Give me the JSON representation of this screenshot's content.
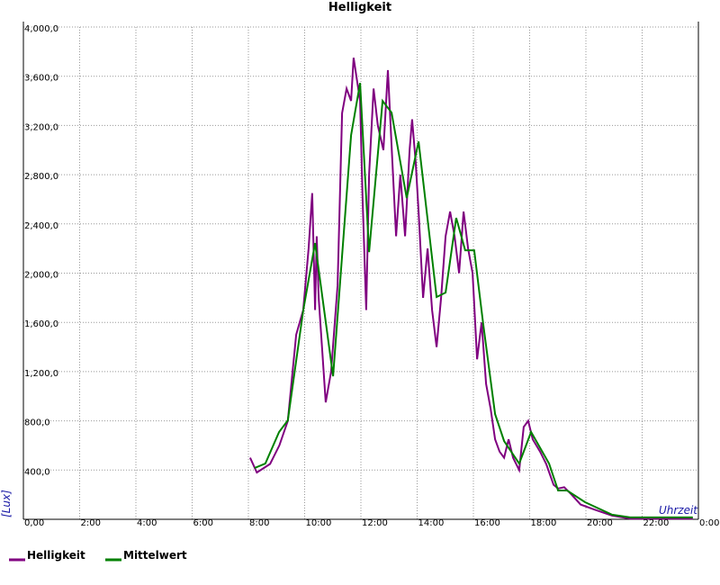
{
  "chart_data": {
    "type": "line",
    "title": "Helligkeit",
    "x_label": "Uhrzeit",
    "y_label": "[Lux]",
    "xlim": [
      0,
      24
    ],
    "xticks": [
      {
        "value": 0,
        "label": "0,00"
      },
      {
        "value": 2,
        "label": "2:00"
      },
      {
        "value": 4,
        "label": "4:00"
      },
      {
        "value": 6,
        "label": "6:00"
      },
      {
        "value": 8,
        "label": "8:00"
      },
      {
        "value": 10,
        "label": "10:00"
      },
      {
        "value": 12,
        "label": "12:00"
      },
      {
        "value": 14,
        "label": "14:00"
      },
      {
        "value": 16,
        "label": "16:00"
      },
      {
        "value": 18,
        "label": "18:00"
      },
      {
        "value": 20,
        "label": "20:00"
      },
      {
        "value": 22,
        "label": "22:00"
      },
      {
        "value": 24,
        "label": "0:00"
      }
    ],
    "ylim": [
      0,
      4000
    ],
    "yticks": [
      {
        "value": 400,
        "label": "400,0"
      },
      {
        "value": 800,
        "label": "800,0"
      },
      {
        "value": 1200,
        "label": "1,200,0"
      },
      {
        "value": 1600,
        "label": "1,600,0"
      },
      {
        "value": 2000,
        "label": "2,000,0"
      },
      {
        "value": 2400,
        "label": "2,400,0"
      },
      {
        "value": 2800,
        "label": "2,800,0"
      },
      {
        "value": 3200,
        "label": "3,200,0"
      },
      {
        "value": 3600,
        "label": "3,600,0"
      },
      {
        "value": 4000,
        "label": "4,000,0"
      }
    ],
    "grid": true,
    "series": [
      {
        "name": "Helligkeit",
        "color": "#800080",
        "x": [
          8.06,
          8.3,
          8.77,
          9.1,
          9.4,
          9.57,
          9.7,
          9.95,
          10.14,
          10.27,
          10.37,
          10.43,
          10.5,
          10.75,
          10.94,
          11.17,
          11.33,
          11.49,
          11.65,
          11.74,
          11.97,
          12.06,
          12.19,
          12.29,
          12.45,
          12.6,
          12.8,
          12.96,
          13.12,
          13.25,
          13.4,
          13.57,
          13.73,
          13.82,
          13.95,
          14.05,
          14.21,
          14.37,
          14.53,
          14.69,
          14.85,
          15.01,
          15.17,
          15.33,
          15.49,
          15.65,
          15.81,
          15.97,
          16.13,
          16.29,
          16.45,
          16.61,
          16.77,
          16.93,
          17.09,
          17.25,
          17.41,
          17.63,
          17.79,
          17.95,
          18.11,
          18.37,
          18.59,
          18.85,
          19.01,
          19.23,
          19.49,
          19.81,
          20.29,
          20.93,
          21.57,
          22.21,
          23.8
        ],
        "values": [
          500,
          380,
          450,
          600,
          800,
          1200,
          1500,
          1700,
          2200,
          2650,
          1700,
          2300,
          1800,
          950,
          1200,
          1900,
          3300,
          3500,
          3400,
          3750,
          3400,
          2600,
          1700,
          2800,
          3500,
          3200,
          3000,
          3650,
          2900,
          2300,
          2800,
          2300,
          3000,
          3250,
          2900,
          2500,
          1800,
          2200,
          1700,
          1400,
          1800,
          2300,
          2500,
          2300,
          2000,
          2500,
          2200,
          2000,
          1300,
          1600,
          1100,
          900,
          650,
          550,
          500,
          650,
          500,
          400,
          750,
          800,
          650,
          550,
          450,
          280,
          250,
          260,
          200,
          120,
          80,
          30,
          5,
          5,
          5
        ]
      },
      {
        "name": "Mittelwert",
        "color": "#008000",
        "x": [
          8.22,
          8.6,
          9.09,
          9.4,
          9.95,
          10.37,
          11.01,
          11.65,
          11.97,
          12.29,
          12.77,
          13.09,
          13.63,
          14.05,
          14.69,
          15.01,
          15.39,
          15.71,
          16.03,
          16.35,
          16.77,
          17.09,
          17.63,
          18.05,
          18.69,
          19.01,
          19.33,
          19.97,
          20.93,
          21.57,
          23.8
        ],
        "values": [
          417,
          453,
          709,
          804,
          1696,
          2244,
          1162,
          3121,
          3545,
          2171,
          3399,
          3304,
          2610,
          3070,
          1806,
          1842,
          2449,
          2186,
          2186,
          1586,
          855,
          636,
          453,
          709,
          453,
          234,
          234,
          139,
          37,
          15,
          15
        ]
      }
    ]
  }
}
